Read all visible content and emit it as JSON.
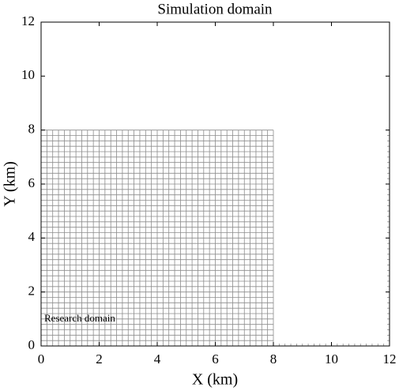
{
  "chart_data": {
    "type": "mesh",
    "title": "Simulation domain",
    "x_label": "X (km)",
    "y_label": "Y (km)",
    "xlim": [
      0,
      12
    ],
    "ylim": [
      0,
      12
    ],
    "xticks": [
      0,
      2,
      4,
      6,
      8,
      10,
      12
    ],
    "yticks": [
      0,
      2,
      4,
      6,
      8,
      10,
      12
    ],
    "research_domain": {
      "label": "Research domain",
      "xlim": [
        0,
        8
      ],
      "ylim": [
        0,
        8
      ]
    },
    "cell_size": 0.2,
    "mesh_color": "#8c8c8c"
  }
}
